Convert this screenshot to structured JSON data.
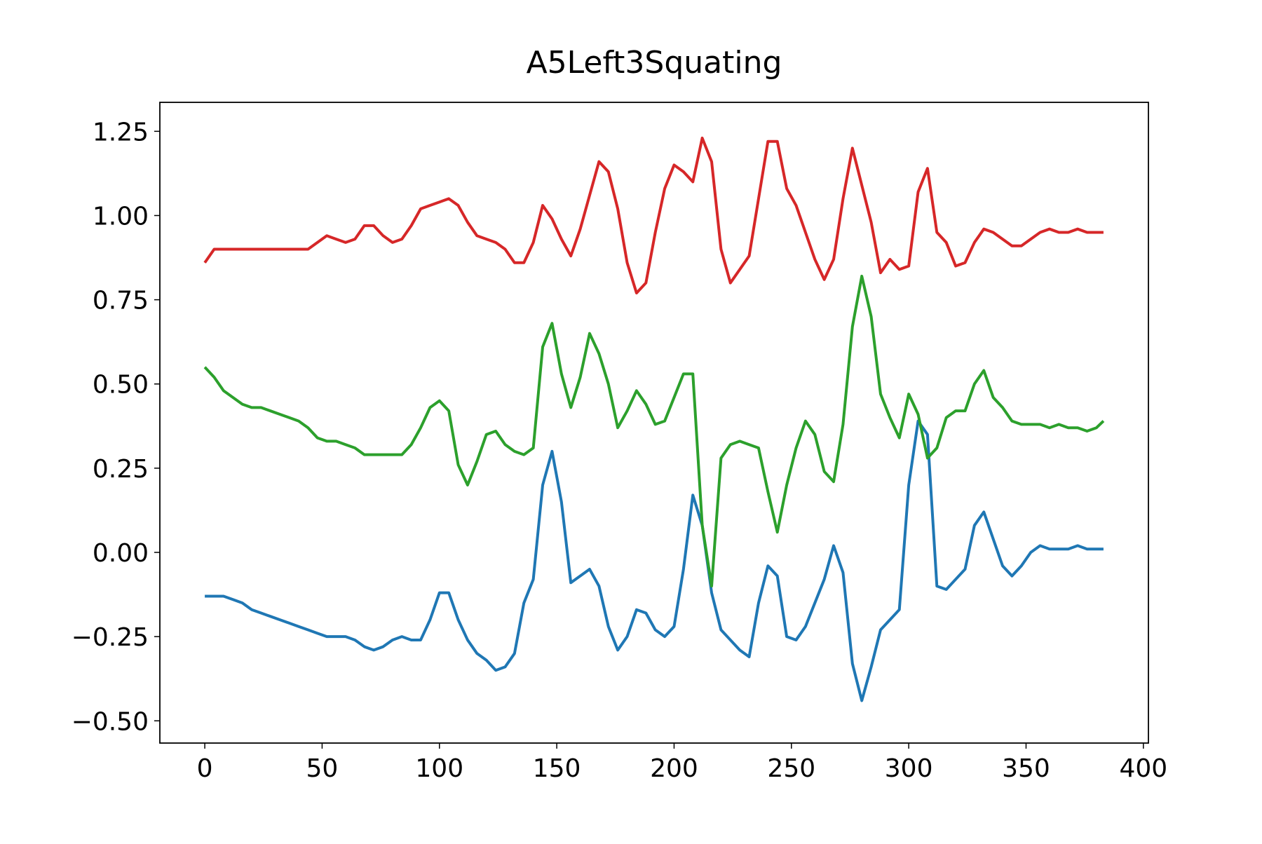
{
  "chart_data": {
    "type": "line",
    "title": "A5Left3Squating",
    "x": [
      0,
      4,
      8,
      12,
      16,
      20,
      24,
      28,
      32,
      36,
      40,
      44,
      48,
      52,
      56,
      60,
      64,
      68,
      72,
      76,
      80,
      84,
      88,
      92,
      96,
      100,
      104,
      108,
      112,
      116,
      120,
      124,
      128,
      132,
      136,
      140,
      144,
      148,
      152,
      156,
      160,
      164,
      168,
      172,
      176,
      180,
      184,
      188,
      192,
      196,
      200,
      204,
      208,
      212,
      216,
      220,
      224,
      228,
      232,
      236,
      240,
      244,
      248,
      252,
      256,
      260,
      264,
      268,
      272,
      276,
      280,
      284,
      288,
      292,
      296,
      300,
      304,
      308,
      312,
      316,
      320,
      324,
      328,
      332,
      336,
      340,
      344,
      348,
      352,
      356,
      360,
      364,
      368,
      372,
      376,
      380,
      383
    ],
    "series": [
      {
        "color": "#1f77b4",
        "values": [
          -0.13,
          -0.13,
          -0.13,
          -0.14,
          -0.15,
          -0.17,
          -0.18,
          -0.19,
          -0.2,
          -0.21,
          -0.22,
          -0.23,
          -0.24,
          -0.25,
          -0.25,
          -0.25,
          -0.26,
          -0.28,
          -0.29,
          -0.28,
          -0.26,
          -0.25,
          -0.26,
          -0.26,
          -0.2,
          -0.12,
          -0.12,
          -0.2,
          -0.26,
          -0.3,
          -0.32,
          -0.35,
          -0.34,
          -0.3,
          -0.15,
          -0.08,
          0.2,
          0.3,
          0.15,
          -0.09,
          -0.07,
          -0.05,
          -0.1,
          -0.22,
          -0.29,
          -0.25,
          -0.17,
          -0.18,
          -0.23,
          -0.25,
          -0.22,
          -0.05,
          0.17,
          0.08,
          -0.12,
          -0.23,
          -0.26,
          -0.29,
          -0.31,
          -0.15,
          -0.04,
          -0.07,
          -0.25,
          -0.26,
          -0.22,
          -0.15,
          -0.08,
          0.02,
          -0.06,
          -0.33,
          -0.44,
          -0.34,
          -0.23,
          -0.2,
          -0.17,
          0.2,
          0.39,
          0.35,
          -0.1,
          -0.11,
          -0.08,
          -0.05,
          0.08,
          0.12,
          0.04,
          -0.04,
          -0.07,
          -0.04,
          0.0,
          0.02,
          0.01,
          0.01,
          0.01,
          0.02,
          0.01,
          0.01,
          0.01
        ]
      },
      {
        "color": "#d62728",
        "values": [
          0.86,
          0.9,
          0.9,
          0.9,
          0.9,
          0.9,
          0.9,
          0.9,
          0.9,
          0.9,
          0.9,
          0.9,
          0.92,
          0.94,
          0.93,
          0.92,
          0.93,
          0.97,
          0.97,
          0.94,
          0.92,
          0.93,
          0.97,
          1.02,
          1.03,
          1.04,
          1.05,
          1.03,
          0.98,
          0.94,
          0.93,
          0.92,
          0.9,
          0.86,
          0.86,
          0.92,
          1.03,
          0.99,
          0.93,
          0.88,
          0.96,
          1.06,
          1.16,
          1.13,
          1.02,
          0.86,
          0.77,
          0.8,
          0.95,
          1.08,
          1.15,
          1.13,
          1.1,
          1.23,
          1.16,
          0.9,
          0.8,
          0.84,
          0.88,
          1.05,
          1.22,
          1.22,
          1.08,
          1.03,
          0.95,
          0.87,
          0.81,
          0.87,
          1.05,
          1.2,
          1.09,
          0.98,
          0.83,
          0.87,
          0.84,
          0.85,
          1.07,
          1.14,
          0.95,
          0.92,
          0.85,
          0.86,
          0.92,
          0.96,
          0.95,
          0.93,
          0.91,
          0.91,
          0.93,
          0.95,
          0.96,
          0.95,
          0.95,
          0.96,
          0.95,
          0.95,
          0.95
        ]
      },
      {
        "color": "#2ca02c",
        "values": [
          0.55,
          0.52,
          0.48,
          0.46,
          0.44,
          0.43,
          0.43,
          0.42,
          0.41,
          0.4,
          0.39,
          0.37,
          0.34,
          0.33,
          0.33,
          0.32,
          0.31,
          0.29,
          0.29,
          0.29,
          0.29,
          0.29,
          0.32,
          0.37,
          0.43,
          0.45,
          0.42,
          0.26,
          0.2,
          0.27,
          0.35,
          0.36,
          0.32,
          0.3,
          0.29,
          0.31,
          0.61,
          0.68,
          0.53,
          0.43,
          0.52,
          0.65,
          0.59,
          0.5,
          0.37,
          0.42,
          0.48,
          0.44,
          0.38,
          0.39,
          0.46,
          0.53,
          0.53,
          0.08,
          -0.1,
          0.28,
          0.32,
          0.33,
          0.32,
          0.31,
          0.18,
          0.06,
          0.2,
          0.31,
          0.39,
          0.35,
          0.24,
          0.21,
          0.38,
          0.67,
          0.82,
          0.7,
          0.47,
          0.4,
          0.34,
          0.47,
          0.41,
          0.28,
          0.31,
          0.4,
          0.42,
          0.42,
          0.5,
          0.54,
          0.46,
          0.43,
          0.39,
          0.38,
          0.38,
          0.38,
          0.37,
          0.38,
          0.37,
          0.37,
          0.36,
          0.37,
          0.39
        ]
      }
    ],
    "xlim": [
      -19.15,
      402.15
    ],
    "xticks": [
      0,
      50,
      100,
      150,
      200,
      250,
      300,
      350,
      400
    ],
    "ylim": [
      -0.566,
      1.336
    ],
    "yticks": [
      {
        "value": -0.5,
        "label": "−0.50"
      },
      {
        "value": -0.25,
        "label": "−0.25"
      },
      {
        "value": 0,
        "label": "0.00"
      },
      {
        "value": 0.25,
        "label": "0.25"
      },
      {
        "value": 0.5,
        "label": "0.50"
      },
      {
        "value": 0.75,
        "label": "0.75"
      },
      {
        "value": 1.0,
        "label": "1.00"
      },
      {
        "value": 1.25,
        "label": "1.25"
      }
    ],
    "grid": false
  }
}
